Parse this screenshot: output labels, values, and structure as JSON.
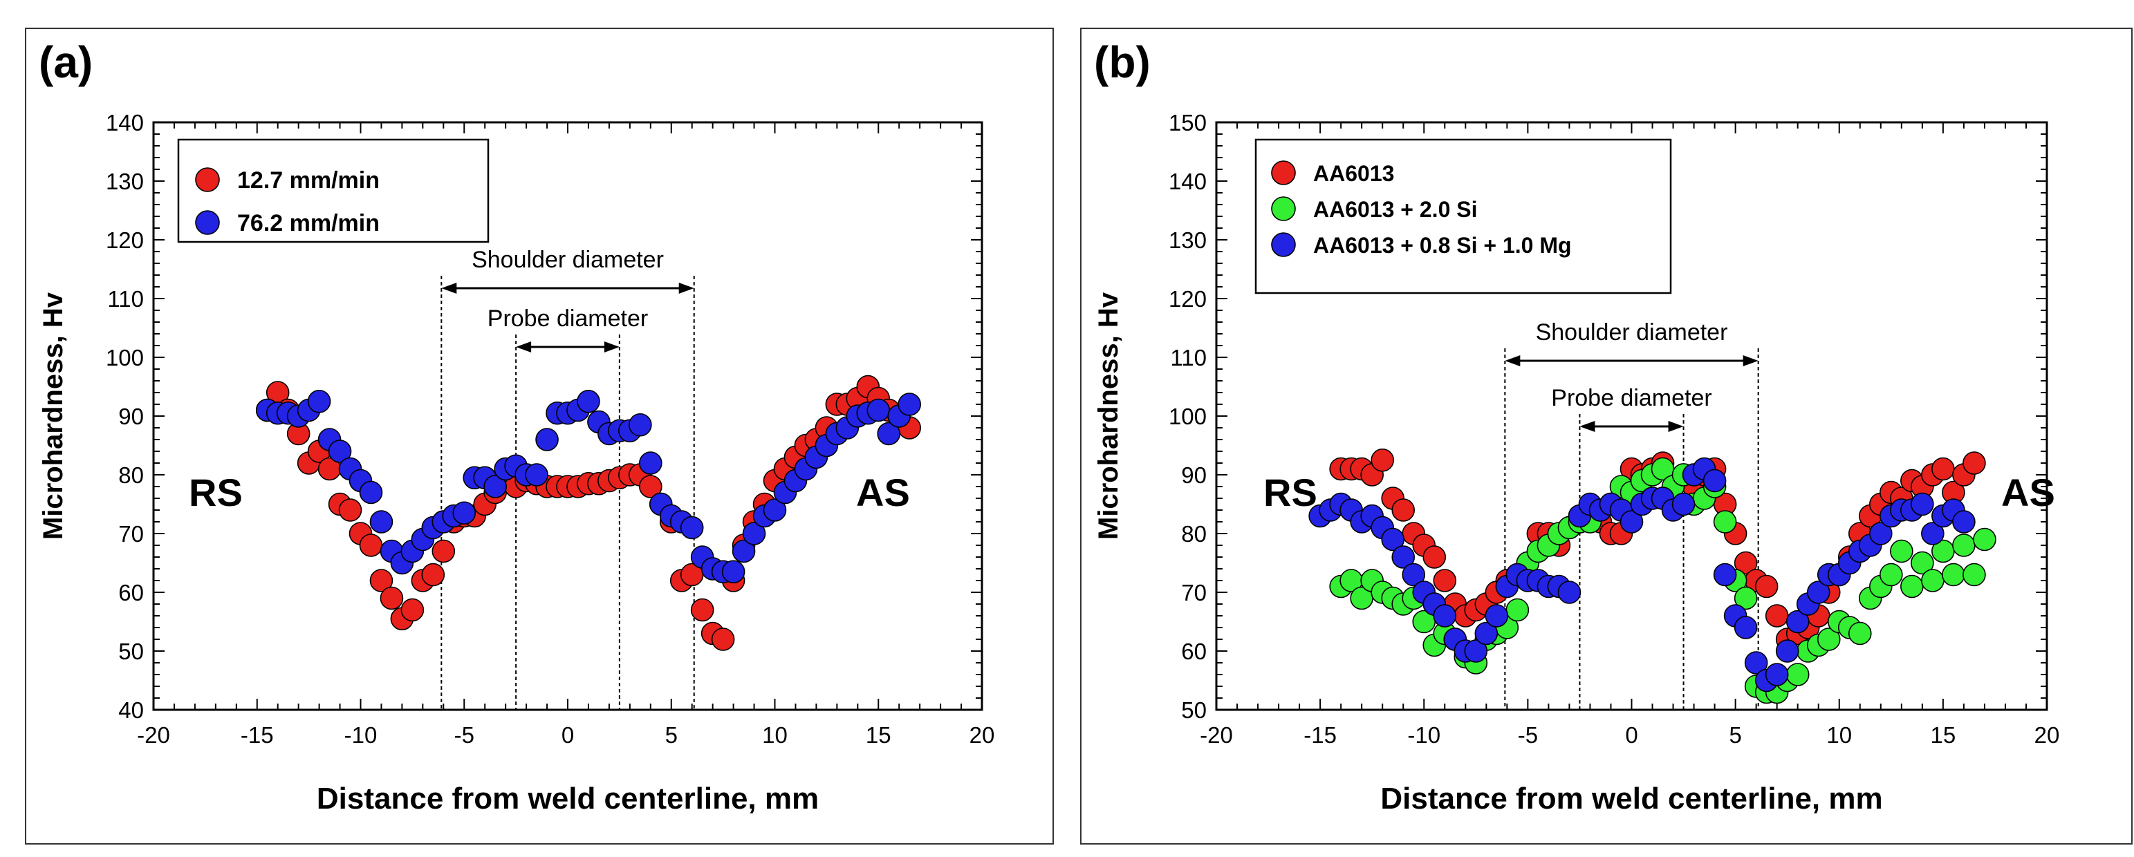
{
  "colors": {
    "red": "#e8211c",
    "green": "#33ee33",
    "blue": "#2323e3",
    "frame": "#000000"
  },
  "chart_data": [
    {
      "type": "scatter",
      "panel_label": "(a)",
      "xlabel": "Distance from weld centerline, mm",
      "ylabel": "Microhardness, Hv",
      "xlim": [
        -20,
        20
      ],
      "ylim": [
        40,
        140
      ],
      "xticks": [
        "-20",
        "-15",
        "-10",
        "-5",
        "0",
        "5",
        "10",
        "15",
        "20"
      ],
      "yticks": [
        "40",
        "50",
        "60",
        "70",
        "80",
        "90",
        "100",
        "110",
        "120",
        "130",
        "140"
      ],
      "legend_position": "top-left",
      "side_labels": {
        "left": "RS",
        "right": "AS"
      },
      "annotations": {
        "shoulder": "Shoulder diameter",
        "probe": "Probe diameter",
        "shoulder_range": [
          -6.1,
          6.1
        ],
        "probe_range": [
          -2.5,
          2.5
        ]
      },
      "series": [
        {
          "name": "12.7 mm/min",
          "color": "red",
          "x": [
            -14.5,
            -14,
            -13.5,
            -13,
            -12.5,
            -12,
            -11.5,
            -11,
            -10.5,
            -10,
            -9.5,
            -9,
            -8.5,
            -8,
            -7.5,
            -7,
            -6.5,
            -6,
            -5.5,
            -5,
            -4.5,
            -4,
            -3.5,
            -3,
            -2.5,
            -2,
            -1.5,
            -1,
            -0.5,
            0,
            0.5,
            1,
            1.5,
            2,
            2.5,
            3,
            3.5,
            4,
            4.5,
            5,
            5.5,
            6,
            6.5,
            7,
            7.5,
            8,
            8.5,
            9,
            9.5,
            10,
            10.5,
            11,
            11.5,
            12,
            12.5,
            13,
            13.5,
            14,
            14.5,
            15,
            15.5,
            16,
            16.5
          ],
          "y": [
            91,
            94,
            91,
            87,
            82,
            84,
            81,
            75,
            74,
            70,
            68,
            62,
            59,
            55.5,
            57,
            62,
            63,
            67,
            72,
            73,
            73,
            75,
            77,
            79,
            78,
            79,
            78.5,
            78,
            78,
            78,
            78,
            78.5,
            78.5,
            79,
            79.5,
            80,
            80,
            78,
            75,
            72,
            62,
            63,
            57,
            53,
            52,
            62,
            68,
            72,
            75,
            79,
            81,
            83,
            85,
            86,
            88,
            92,
            92,
            93,
            95,
            93,
            91,
            90,
            88
          ]
        },
        {
          "name": "76.2 mm/min",
          "color": "blue",
          "x": [
            -14.5,
            -14,
            -13.5,
            -13,
            -12.5,
            -12,
            -11.5,
            -11,
            -10.5,
            -10,
            -9.5,
            -9,
            -8.5,
            -8,
            -7.5,
            -7,
            -6.5,
            -6,
            -5.5,
            -5,
            -4.5,
            -4,
            -3.5,
            -3,
            -2.5,
            -2,
            -1.5,
            -1,
            -0.5,
            0,
            0.5,
            1,
            1.5,
            2,
            2.5,
            3,
            3.5,
            4,
            4.5,
            5,
            5.5,
            6,
            6.5,
            7,
            7.5,
            8,
            8.5,
            9,
            9.5,
            10,
            10.5,
            11,
            11.5,
            12,
            12.5,
            13,
            13.5,
            14,
            14.5,
            15,
            15.5,
            16,
            16.5
          ],
          "y": [
            91,
            90.5,
            90.5,
            90,
            91,
            92.5,
            86,
            84,
            81,
            79,
            77,
            72,
            67,
            65,
            67,
            69,
            71,
            72,
            73,
            73.5,
            79.5,
            79.5,
            78,
            81,
            81.5,
            80,
            80,
            86,
            90.5,
            90.5,
            91,
            92.5,
            89,
            87,
            87.5,
            87.5,
            88.5,
            82,
            75,
            73,
            72,
            71,
            66,
            64,
            63.5,
            63.5,
            67,
            70,
            73,
            74,
            77,
            79,
            81,
            83,
            85,
            87,
            88,
            90,
            90.5,
            91,
            87,
            90,
            92
          ]
        }
      ]
    },
    {
      "type": "scatter",
      "panel_label": "(b)",
      "xlabel": "Distance from weld centerline, mm",
      "ylabel": "Microhardness, Hv",
      "xlim": [
        -20,
        20
      ],
      "ylim": [
        50,
        150
      ],
      "xticks": [
        "-20",
        "-15",
        "-10",
        "-5",
        "0",
        "5",
        "10",
        "15",
        "20"
      ],
      "yticks": [
        "50",
        "60",
        "70",
        "80",
        "90",
        "100",
        "110",
        "120",
        "130",
        "140",
        "150"
      ],
      "legend_position": "top-left",
      "side_labels": {
        "left": "RS",
        "right": "AS"
      },
      "annotations": {
        "shoulder": "Shoulder diameter",
        "probe": "Probe diameter",
        "shoulder_range": [
          -6.1,
          6.1
        ],
        "probe_range": [
          -2.5,
          2.5
        ]
      },
      "series": [
        {
          "name": "AA6013",
          "color": "red",
          "x": [
            -14,
            -13.5,
            -13,
            -12.5,
            -12,
            -11.5,
            -11,
            -10.5,
            -10,
            -9.5,
            -9,
            -8.5,
            -8,
            -7.5,
            -7,
            -6.5,
            -6,
            -5.5,
            -5,
            -4.5,
            -4,
            -3.5,
            -3,
            -2.5,
            -2,
            -1.5,
            -1,
            -0.5,
            0,
            0.5,
            1,
            1.5,
            2,
            2.5,
            3,
            3.5,
            4,
            4.5,
            5,
            5.5,
            6,
            6.5,
            7,
            7.5,
            8,
            8.5,
            9,
            9.5,
            10,
            10.5,
            11,
            11.5,
            12,
            12.5,
            13,
            13.5,
            14,
            14.5,
            15,
            15.5,
            16,
            16.5
          ],
          "y": [
            91,
            91,
            91,
            90,
            92.5,
            86,
            84,
            80,
            78,
            76,
            72,
            68,
            66,
            67,
            68,
            70,
            72,
            73,
            75,
            80,
            80,
            78,
            81,
            82,
            84,
            82,
            80,
            80,
            91,
            90,
            91,
            92,
            86,
            90,
            88,
            90,
            91,
            85,
            80,
            75,
            72,
            71,
            66,
            62,
            63,
            64,
            66,
            70,
            73,
            76,
            80,
            83,
            85,
            87,
            86,
            89,
            88,
            90,
            91,
            87,
            90,
            92
          ]
        },
        {
          "name": "AA6013 + 2.0 Si",
          "color": "green",
          "x": [
            -14,
            -13.5,
            -13,
            -12.5,
            -12,
            -11.5,
            -11,
            -10.5,
            -10,
            -9.5,
            -9,
            -8.5,
            -8,
            -7.5,
            -7,
            -6.5,
            -6,
            -5.5,
            -5,
            -4.5,
            -4,
            -3.5,
            -3,
            -2.5,
            -2,
            -1.5,
            -1,
            -0.5,
            0,
            0.5,
            1,
            1.5,
            2,
            2.5,
            3,
            3.5,
            4,
            4.5,
            5,
            5.5,
            6,
            6.5,
            7,
            7.5,
            8,
            8.5,
            9,
            9.5,
            10,
            10.5,
            11,
            11.5,
            12,
            12.5,
            13,
            13.5,
            14,
            14.5,
            15,
            15.5,
            16,
            16.5,
            17
          ],
          "y": [
            71,
            72,
            69,
            72,
            70,
            69,
            68,
            69,
            65,
            61,
            63,
            62,
            59,
            58,
            62,
            63,
            64,
            67,
            75,
            77,
            78,
            80,
            81,
            82,
            82,
            84,
            85,
            88,
            87,
            89,
            90,
            91,
            88,
            90,
            85,
            86,
            88,
            82,
            72,
            69,
            54,
            53,
            53,
            55,
            56,
            60,
            61,
            62,
            65,
            64,
            63,
            69,
            71,
            73,
            77,
            71,
            75,
            72,
            77,
            73,
            78,
            73,
            79
          ]
        },
        {
          "name": "AA6013 + 0.8 Si + 1.0 Mg",
          "color": "blue",
          "x": [
            -15,
            -14.5,
            -14,
            -13.5,
            -13,
            -12.5,
            -12,
            -11.5,
            -11,
            -10.5,
            -10,
            -9.5,
            -9,
            -8.5,
            -8,
            -7.5,
            -7,
            -6.5,
            -6,
            -5.5,
            -5,
            -4.5,
            -4,
            -3.5,
            -3,
            -2.5,
            -2,
            -1.5,
            -1,
            -0.5,
            0,
            0.5,
            1,
            1.5,
            2,
            2.5,
            3,
            3.5,
            4,
            4.5,
            5,
            5.5,
            6,
            6.5,
            7,
            7.5,
            8,
            8.5,
            9,
            9.5,
            10,
            10.5,
            11,
            11.5,
            12,
            12.5,
            13,
            13.5,
            14,
            14.5,
            15,
            15.5,
            16
          ],
          "y": [
            83,
            84,
            85,
            84,
            82,
            83,
            81,
            79,
            76,
            73,
            70,
            68,
            66,
            62,
            60,
            60,
            63,
            66,
            71,
            73,
            72,
            72,
            71,
            71,
            70,
            83,
            85,
            84,
            85,
            84,
            82,
            85,
            86,
            86,
            84,
            85,
            90,
            91,
            89,
            73,
            66,
            64,
            58,
            55,
            56,
            60,
            65,
            68,
            70,
            73,
            73,
            75,
            77,
            78,
            80,
            83,
            84,
            84,
            85,
            80,
            83,
            84,
            82
          ]
        }
      ]
    }
  ]
}
